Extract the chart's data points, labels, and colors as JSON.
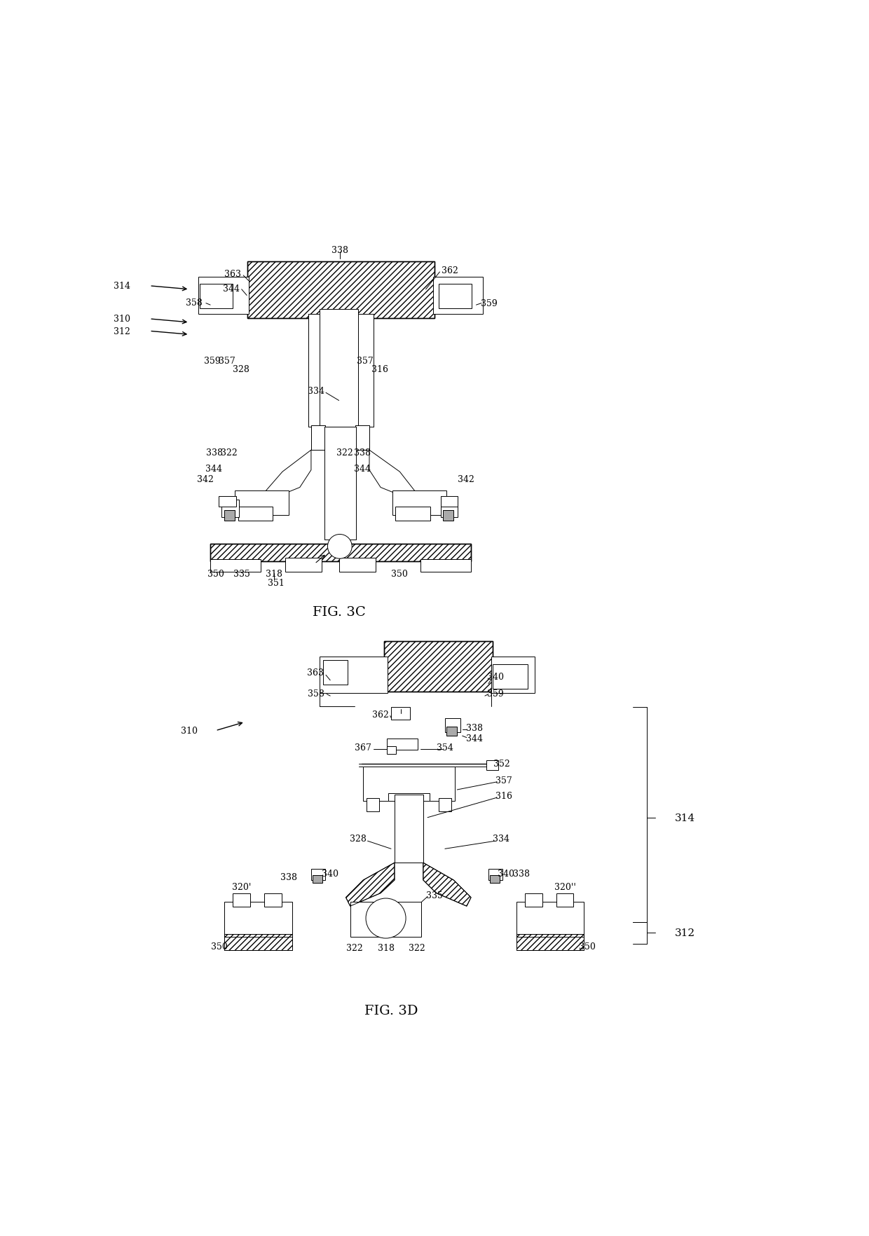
{
  "fig_title_3c": "FIG. 3C",
  "fig_title_3d": "FIG. 3D",
  "background_color": "#ffffff",
  "line_color": "#000000",
  "font_size_label": 9,
  "font_size_fig": 14
}
